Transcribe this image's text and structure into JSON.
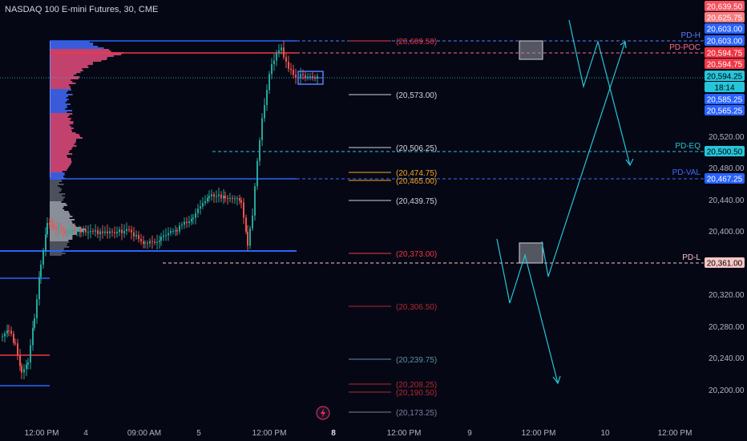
{
  "header": {
    "title": "NASDAQ 100 E-mini Futures, 30, CME"
  },
  "colors": {
    "background": "#050814",
    "blue_line": "#2962ff",
    "red_line": "#f23645",
    "teal": "#26c6da",
    "pink": "#ff4d7a",
    "gray": "#9598a1"
  },
  "price_axis": {
    "ticks": [
      "20,520.00",
      "20,480.00",
      "20,440.00",
      "20,400.00",
      "20,320.00",
      "20,280.00",
      "20,240.00",
      "20,200.00"
    ],
    "badges": [
      {
        "text": "20,639.50",
        "bg": "#f7525f",
        "fg": "#ffffff"
      },
      {
        "text": "20,625.75",
        "bg": "#f77c80",
        "fg": "#ffffff"
      },
      {
        "text": "20,603.00",
        "bg": "#2962ff",
        "fg": "#ffffff"
      },
      {
        "text": "20,603.00",
        "bg": "#2962ff",
        "fg": "#ffffff"
      },
      {
        "text": "20,594.75",
        "bg": "#f23645",
        "fg": "#ffffff"
      },
      {
        "text": "20,594.75",
        "bg": "#f23645",
        "fg": "#ffffff"
      },
      {
        "text": "20,594.25",
        "bg": "#26c6da",
        "fg": "#000000"
      },
      {
        "text": "18:14",
        "bg": "#26c6da",
        "fg": "#000000"
      },
      {
        "text": "20,585.25",
        "bg": "#2962ff",
        "fg": "#ffffff"
      },
      {
        "text": "20,565.25",
        "bg": "#2962ff",
        "fg": "#ffffff"
      },
      {
        "text": "20,500.50",
        "bg": "#26c6da",
        "fg": "#000000"
      },
      {
        "text": "20,467.25",
        "bg": "#2962ff",
        "fg": "#ffffff"
      },
      {
        "text": "20,361.00",
        "bg": "#f7c6c6",
        "fg": "#000000"
      }
    ]
  },
  "time_axis": {
    "labels": [
      "12:00 PM",
      "4",
      "09:00 AM",
      "5",
      "12:00 PM",
      "8",
      "12:00 PM",
      "9",
      "12:00 PM",
      "10",
      "12:00 PM"
    ]
  },
  "level_tags": [
    {
      "text": "PD-H",
      "color": "#5b7bff"
    },
    {
      "text": "PD-POC",
      "color": "#ff6b81"
    },
    {
      "text": "PD-EQ",
      "color": "#26c6da"
    },
    {
      "text": "PD-VAL",
      "color": "#4169ff"
    },
    {
      "text": "PD-L",
      "color": "#f7c6c6"
    }
  ],
  "fib_labels": [
    {
      "text": "(20,609.50)",
      "color": "#f23645"
    },
    {
      "text": "(20,573.00)",
      "color": "#d1d4dc"
    },
    {
      "text": "(20,506.25)",
      "color": "#d1d4dc"
    },
    {
      "text": "(20,474.75)",
      "color": "#f5a623"
    },
    {
      "text": "(20,465.00)",
      "color": "#f5a623"
    },
    {
      "text": "(20,439.75)",
      "color": "#d1d4dc"
    },
    {
      "text": "(20,373.00)",
      "color": "#f23645"
    },
    {
      "text": "(20,306.50)",
      "color": "#b22833"
    },
    {
      "text": "(20,239.75)",
      "color": "#5f8fa8"
    },
    {
      "text": "(20,208.25)",
      "color": "#b22833"
    },
    {
      "text": "(20,190.50)",
      "color": "#b22833"
    },
    {
      "text": "(20,173.25)",
      "color": "#7a7fa0"
    }
  ],
  "icons": [
    "lightning-icon"
  ]
}
